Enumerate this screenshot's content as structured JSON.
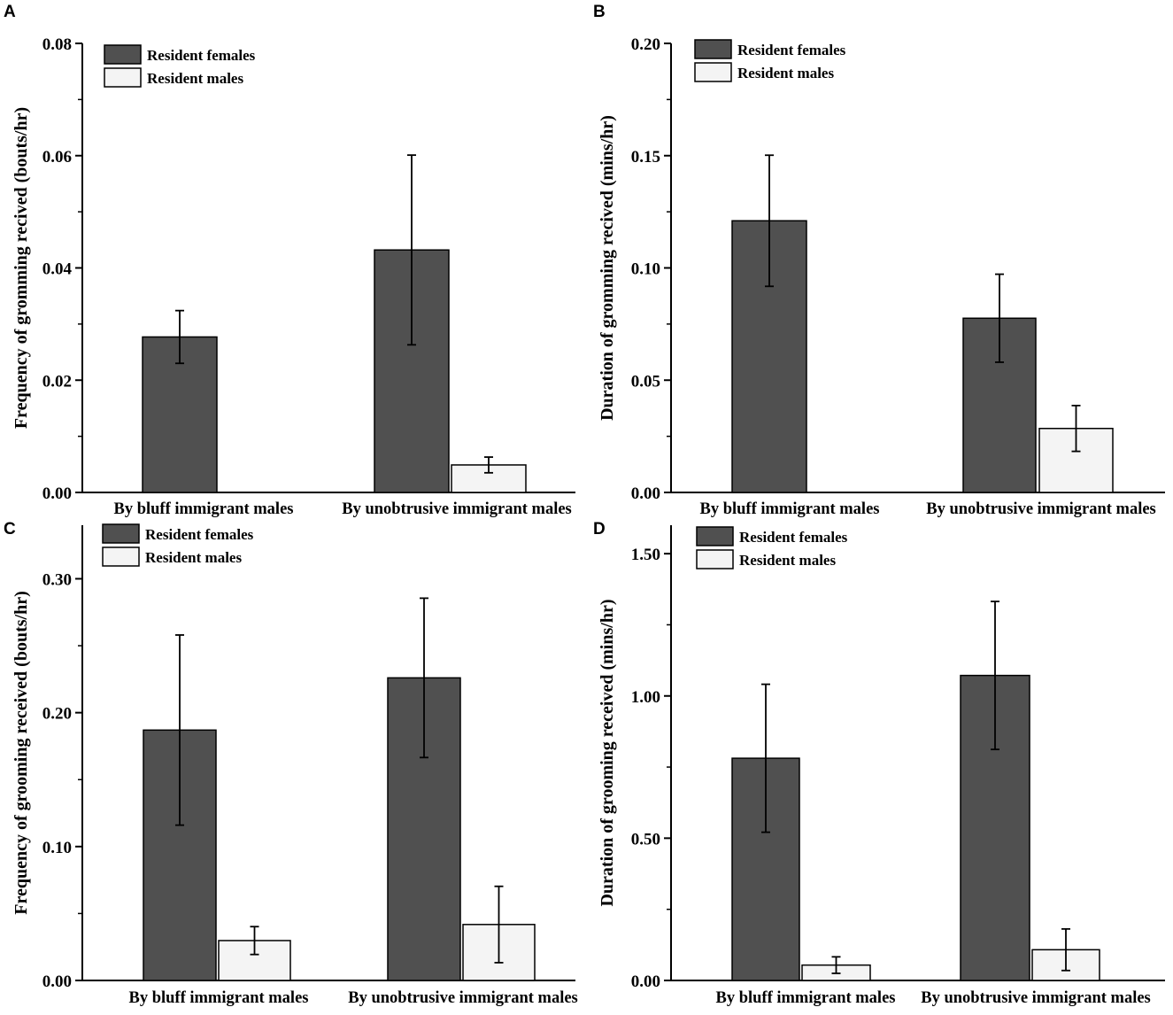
{
  "colors": {
    "females": "#505050",
    "males": "#f4f4f4",
    "axis": "#000000"
  },
  "chart_data": [
    {
      "type": "bar",
      "panel_label": "A",
      "ylabel": "Frequency of gromming recived (bouts/hr)",
      "ylim": [
        0,
        0.08
      ],
      "yticks": [
        0,
        0.02,
        0.04,
        0.06,
        0.08
      ],
      "ytick_labels": [
        "0.00",
        "0.02",
        "0.04",
        "0.06",
        "0.08"
      ],
      "categories": [
        "By bluff immigrant males",
        "By unobtrusive immigrant males"
      ],
      "legend": [
        "Resident females",
        "Resident males"
      ],
      "series": [
        {
          "name": "Resident females",
          "values": [
            0.0277,
            0.0432
          ],
          "errors": [
            0.0047,
            0.0169
          ]
        },
        {
          "name": "Resident males",
          "values": [
            0,
            0.0049
          ],
          "errors": [
            0,
            0.0014
          ]
        }
      ]
    },
    {
      "type": "bar",
      "panel_label": "B",
      "ylabel": "Duration of gromming recived (mins/hr)",
      "ylim": [
        0,
        0.2
      ],
      "yticks": [
        0,
        0.05,
        0.1,
        0.15,
        0.2
      ],
      "ytick_labels": [
        "0.00",
        "0.05",
        "0.10",
        "0.15",
        "0.20"
      ],
      "categories": [
        "By bluff immigrant males",
        "By unobtrusive immigrant males"
      ],
      "legend": [
        "Resident females",
        "Resident males"
      ],
      "series": [
        {
          "name": "Resident females",
          "values": [
            0.121,
            0.0776
          ],
          "errors": [
            0.0292,
            0.0196
          ]
        },
        {
          "name": "Resident males",
          "values": [
            0,
            0.0285
          ],
          "errors": [
            0,
            0.0102
          ]
        }
      ]
    },
    {
      "type": "bar",
      "panel_label": "C",
      "ylabel": "Frequency of grooming received (bouts/hr)",
      "ylim": [
        0,
        0.34
      ],
      "yticks": [
        0,
        0.1,
        0.2,
        0.3
      ],
      "ytick_labels": [
        "0.00",
        "0.10",
        "0.20",
        "0.30"
      ],
      "categories": [
        "By bluff immigrant males",
        "By unobtrusive immigrant males"
      ],
      "legend": [
        "Resident females",
        "Resident males"
      ],
      "series": [
        {
          "name": "Resident females",
          "values": [
            0.187,
            0.226
          ],
          "errors": [
            0.071,
            0.0595
          ]
        },
        {
          "name": "Resident males",
          "values": [
            0.0298,
            0.0418
          ],
          "errors": [
            0.0104,
            0.0285
          ]
        }
      ]
    },
    {
      "type": "bar",
      "panel_label": "D",
      "ylabel": "Duration of grooming received (mins/hr)",
      "ylim": [
        0,
        1.6
      ],
      "yticks": [
        0,
        0.5,
        1.0,
        1.5
      ],
      "ytick_labels": [
        "0.00",
        "0.50",
        "1.00",
        "1.50"
      ],
      "categories": [
        "By bluff immigrant males",
        "By unobtrusive immigrant males"
      ],
      "legend": [
        "Resident females",
        "Resident males"
      ],
      "series": [
        {
          "name": "Resident females",
          "values": [
            0.781,
            1.072
          ],
          "errors": [
            0.26,
            0.26
          ]
        },
        {
          "name": "Resident males",
          "values": [
            0.054,
            0.108
          ],
          "errors": [
            0.029,
            0.073
          ]
        }
      ]
    }
  ]
}
